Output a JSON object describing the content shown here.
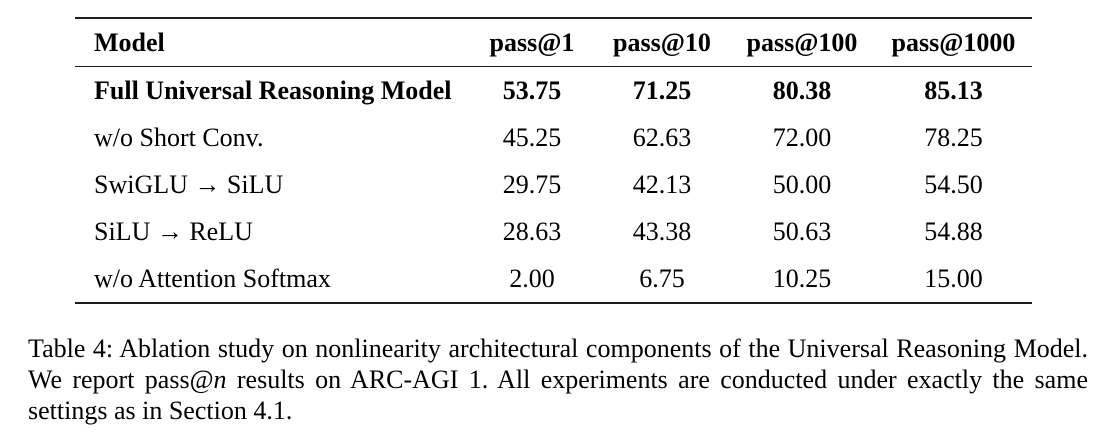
{
  "colors": {
    "text": "#000000",
    "rule": "#1c1c1c",
    "page_background": "#ffffff"
  },
  "table": {
    "columns": [
      "Model",
      "pass@1",
      "pass@10",
      "pass@100",
      "pass@1000"
    ],
    "rows": [
      {
        "model": "Full Universal Reasoning Model",
        "values": [
          "53.75",
          "71.25",
          "80.38",
          "85.13"
        ],
        "bold": true
      },
      {
        "model": "w/o Short Conv.",
        "values": [
          "45.25",
          "62.63",
          "72.00",
          "78.25"
        ],
        "bold": false
      },
      {
        "model": "SwiGLU → SiLU",
        "values": [
          "29.75",
          "42.13",
          "50.00",
          "54.50"
        ],
        "bold": false
      },
      {
        "model": "SiLU → ReLU",
        "values": [
          "28.63",
          "43.38",
          "50.63",
          "54.88"
        ],
        "bold": false
      },
      {
        "model": "w/o Attention Softmax",
        "values": [
          "2.00",
          "6.75",
          "10.25",
          "15.00"
        ],
        "bold": false
      }
    ]
  },
  "caption": {
    "segments": [
      {
        "text": "Table 4: Ablation study on nonlinearity architectural components of the Universal Reasoning Model. We report pass@",
        "italic": false
      },
      {
        "text": "n",
        "italic": true
      },
      {
        "text": " results on ARC-AGI 1. All experiments are conducted under exactly the same settings as in Section 4.1.",
        "italic": false
      }
    ]
  }
}
